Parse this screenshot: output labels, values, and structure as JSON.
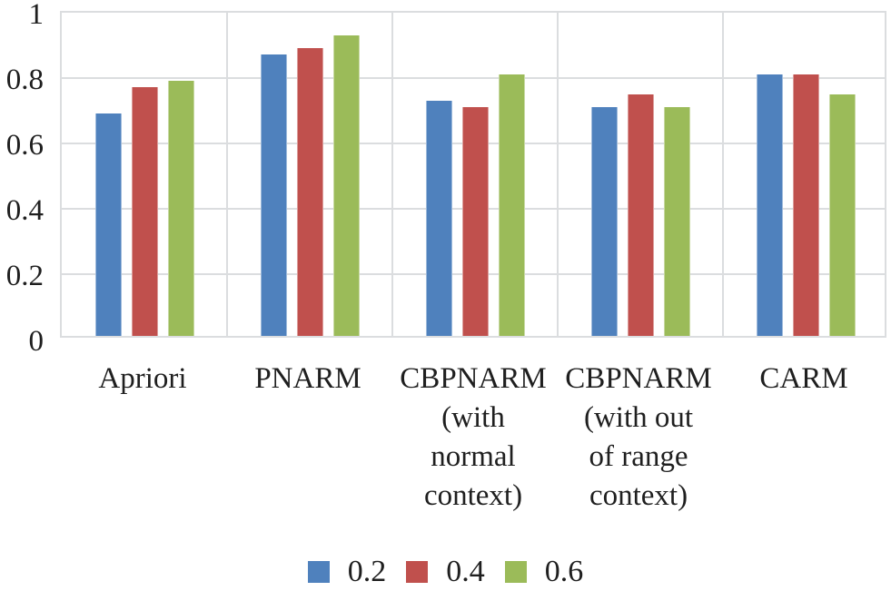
{
  "chart_data": {
    "type": "bar",
    "title": "",
    "xlabel": "",
    "ylabel": "",
    "ylim": [
      0,
      1
    ],
    "grid": true,
    "legend_position": "bottom",
    "categories": [
      "Apriori",
      "PNARM",
      "CBPNARM (with normal context)",
      "CBPNARM (with out of range context)",
      "CARM"
    ],
    "category_lines": [
      [
        "Apriori"
      ],
      [
        "PNARM"
      ],
      [
        "CBPNARM",
        "(with",
        "normal",
        "context)"
      ],
      [
        "CBPNARM",
        "(with out",
        "of range",
        "context)"
      ],
      [
        "CARM"
      ]
    ],
    "series": [
      {
        "name": "0.2",
        "color": "#4F81BD",
        "values": [
          0.68,
          0.86,
          0.72,
          0.7,
          0.8
        ]
      },
      {
        "name": "0.4",
        "color": "#C0504D",
        "values": [
          0.76,
          0.88,
          0.7,
          0.74,
          0.8
        ]
      },
      {
        "name": "0.6",
        "color": "#9BBB59",
        "values": [
          0.78,
          0.92,
          0.8,
          0.7,
          0.74
        ]
      }
    ],
    "y_ticks": [
      "1",
      "0.8",
      "0.6",
      "0.4",
      "0.2",
      "0"
    ],
    "y_tick_values": [
      1,
      0.8,
      0.6,
      0.4,
      0.2,
      0
    ],
    "colors": {
      "gridline": "#DBDDDF",
      "text": "#1F1F1F",
      "background": "#FFFFFF"
    }
  }
}
